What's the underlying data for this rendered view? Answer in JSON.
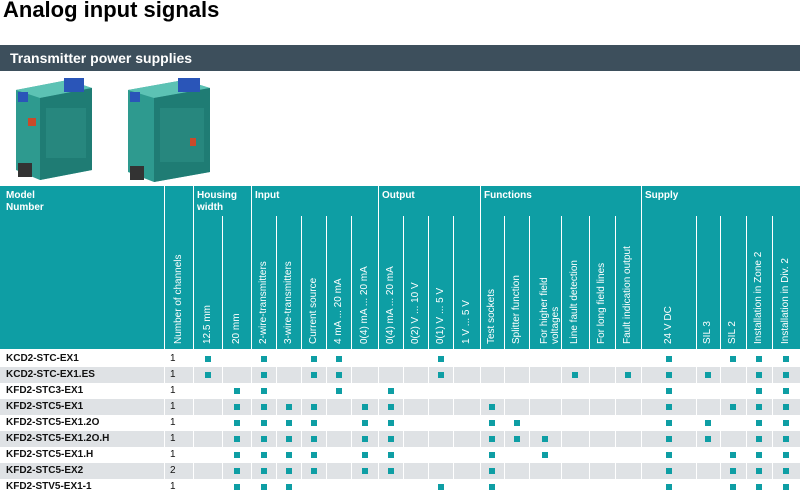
{
  "page": {
    "title": "Analog input signals"
  },
  "section": {
    "title": "Transmitter power supplies"
  },
  "header": {
    "model_label": "Model Number",
    "groups": [
      {
        "label": "Housing\nwidth"
      },
      {
        "label": "Input"
      },
      {
        "label": "Output"
      },
      {
        "label": "Functions"
      },
      {
        "label": "Supply"
      }
    ],
    "columns": [
      "Number of channels",
      "12.5 mm",
      "20 mm",
      "2-wire-transmitters",
      "3-wire-transmitters",
      "Current source",
      "4 mA ... 20 mA",
      "0(4) mA ... 20 mA",
      "0(4) mA ... 20 mA",
      "0(2) V ... 10 V",
      "0(1) V ... 5 V",
      "1 V ... 5 V",
      "Test sockets",
      "Splitter function",
      "For higher field\nvoltages",
      "Line fault detection",
      "For long field lines",
      "Fault indication output",
      "24 V DC",
      "SIL 3",
      "SIL 2",
      "Installation in Zone 2",
      "Installation in Div. 2"
    ]
  },
  "rows": [
    {
      "model": "KCD2-STC-EX1",
      "channels": "1",
      "marks": [
        1,
        0,
        1,
        0,
        1,
        1,
        0,
        0,
        0,
        1,
        0,
        0,
        0,
        0,
        0,
        0,
        0,
        1,
        0,
        1,
        1,
        1
      ]
    },
    {
      "model": "KCD2-STC-EX1.ES",
      "channels": "1",
      "marks": [
        1,
        0,
        1,
        0,
        1,
        1,
        0,
        0,
        0,
        1,
        0,
        0,
        0,
        0,
        1,
        0,
        1,
        1,
        1,
        0,
        1,
        1
      ]
    },
    {
      "model": "KFD2-STC3-EX1",
      "channels": "1",
      "marks": [
        0,
        1,
        1,
        0,
        0,
        1,
        0,
        1,
        0,
        0,
        0,
        0,
        0,
        0,
        0,
        0,
        0,
        1,
        0,
        0,
        1,
        1
      ]
    },
    {
      "model": "KFD2-STC5-EX1",
      "channels": "1",
      "marks": [
        0,
        1,
        1,
        1,
        1,
        0,
        1,
        1,
        0,
        0,
        0,
        1,
        0,
        0,
        0,
        0,
        0,
        1,
        0,
        1,
        1,
        1
      ]
    },
    {
      "model": "KFD2-STC5-EX1.2O",
      "channels": "1",
      "marks": [
        0,
        1,
        1,
        1,
        1,
        0,
        1,
        1,
        0,
        0,
        0,
        1,
        1,
        0,
        0,
        0,
        0,
        1,
        1,
        0,
        1,
        1
      ]
    },
    {
      "model": "KFD2-STC5-EX1.2O.H",
      "channels": "1",
      "marks": [
        0,
        1,
        1,
        1,
        1,
        0,
        1,
        1,
        0,
        0,
        0,
        1,
        1,
        1,
        0,
        0,
        0,
        1,
        1,
        0,
        1,
        1
      ]
    },
    {
      "model": "KFD2-STC5-EX1.H",
      "channels": "1",
      "marks": [
        0,
        1,
        1,
        1,
        1,
        0,
        1,
        1,
        0,
        0,
        0,
        1,
        0,
        1,
        0,
        0,
        0,
        1,
        0,
        1,
        1,
        1
      ]
    },
    {
      "model": "KFD2-STC5-EX2",
      "channels": "2",
      "marks": [
        0,
        1,
        1,
        1,
        1,
        0,
        1,
        1,
        0,
        0,
        0,
        1,
        0,
        0,
        0,
        0,
        0,
        1,
        0,
        1,
        1,
        1
      ]
    },
    {
      "model": "KFD2-STV5-EX1-1",
      "channels": "1",
      "marks": [
        0,
        1,
        1,
        1,
        0,
        0,
        0,
        0,
        0,
        1,
        0,
        1,
        0,
        0,
        0,
        0,
        0,
        1,
        0,
        1,
        1,
        1
      ]
    }
  ],
  "colors": {
    "accent": "#0e9ea4",
    "bar": "#3d4f5c",
    "row_alt": "#dfe2e5"
  }
}
